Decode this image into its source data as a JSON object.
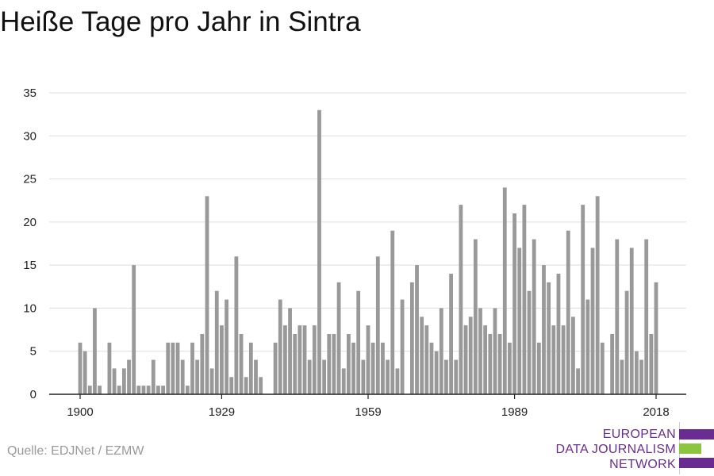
{
  "title": "Heiße Tage pro Jahr in Sintra",
  "source": "Quelle: EDJNet / EZMW",
  "logo": {
    "lines": [
      "EUROPEAN",
      "DATA JOURNALISM",
      "NETWORK"
    ],
    "colors": {
      "purple": "#6b2c91",
      "green": "#8cc63f"
    }
  },
  "chart_data": {
    "type": "bar",
    "title": "Heiße Tage pro Jahr in Sintra",
    "xlabel": "",
    "ylabel": "",
    "xlim": [
      1900,
      2018
    ],
    "ylim": [
      0,
      35
    ],
    "y_ticks": [
      0,
      5,
      10,
      15,
      20,
      25,
      30,
      35
    ],
    "x_ticks": [
      1900,
      1929,
      1959,
      1989,
      2018
    ],
    "grid": true,
    "bar_color": "#999999",
    "x": [
      1900,
      1901,
      1902,
      1903,
      1904,
      1905,
      1906,
      1907,
      1908,
      1909,
      1910,
      1911,
      1912,
      1913,
      1914,
      1915,
      1916,
      1917,
      1918,
      1919,
      1920,
      1921,
      1922,
      1923,
      1924,
      1925,
      1926,
      1927,
      1928,
      1929,
      1930,
      1931,
      1932,
      1933,
      1934,
      1935,
      1936,
      1937,
      1938,
      1939,
      1940,
      1941,
      1942,
      1943,
      1944,
      1945,
      1946,
      1947,
      1948,
      1949,
      1950,
      1951,
      1952,
      1953,
      1954,
      1955,
      1956,
      1957,
      1958,
      1959,
      1960,
      1961,
      1962,
      1963,
      1964,
      1965,
      1966,
      1967,
      1968,
      1969,
      1970,
      1971,
      1972,
      1973,
      1974,
      1975,
      1976,
      1977,
      1978,
      1979,
      1980,
      1981,
      1982,
      1983,
      1984,
      1985,
      1986,
      1987,
      1988,
      1989,
      1990,
      1991,
      1992,
      1993,
      1994,
      1995,
      1996,
      1997,
      1998,
      1999,
      2000,
      2001,
      2002,
      2003,
      2004,
      2005,
      2006,
      2007,
      2008,
      2009,
      2010,
      2011,
      2012,
      2013,
      2014,
      2015,
      2016,
      2017,
      2018
    ],
    "values": [
      6,
      5,
      1,
      10,
      1,
      0,
      6,
      3,
      1,
      3,
      4,
      15,
      1,
      1,
      1,
      4,
      1,
      1,
      6,
      6,
      6,
      4,
      1,
      6,
      4,
      7,
      23,
      3,
      12,
      8,
      11,
      2,
      16,
      7,
      2,
      6,
      4,
      2,
      0,
      0,
      6,
      11,
      8,
      10,
      7,
      8,
      8,
      4,
      8,
      33,
      4,
      7,
      7,
      13,
      3,
      7,
      6,
      12,
      4,
      8,
      6,
      16,
      6,
      4,
      19,
      3,
      11,
      0,
      13,
      15,
      9,
      8,
      6,
      5,
      10,
      4,
      14,
      4,
      22,
      8,
      9,
      18,
      10,
      8,
      7,
      10,
      7,
      24,
      6,
      21,
      17,
      22,
      12,
      18,
      6,
      15,
      13,
      8,
      14,
      8,
      19,
      9,
      3,
      22,
      11,
      17,
      23,
      6,
      0,
      7,
      18,
      4,
      12,
      17,
      5,
      4,
      18,
      7,
      13
    ]
  }
}
